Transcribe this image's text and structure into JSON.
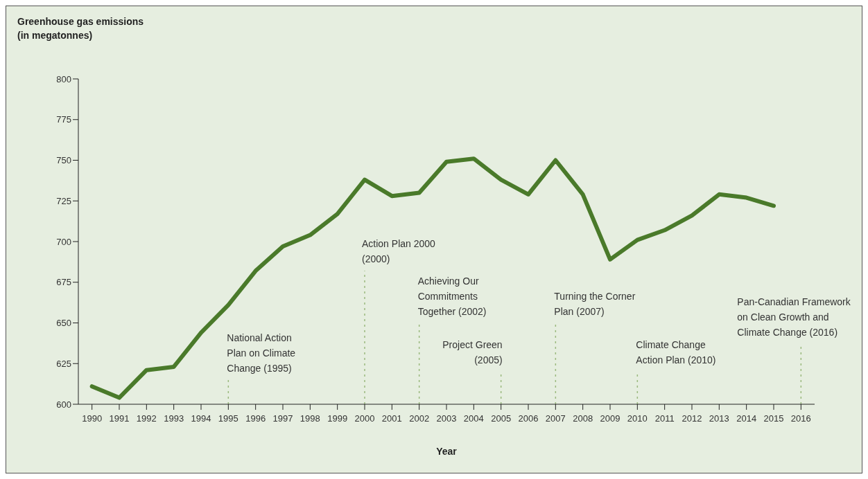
{
  "chart_data": {
    "type": "line",
    "ylabel": "Greenhouse gas emissions\n(in megatonnes)",
    "xlabel": "Year",
    "x": [
      1990,
      1991,
      1992,
      1993,
      1994,
      1995,
      1996,
      1997,
      1998,
      1999,
      2000,
      2001,
      2002,
      2003,
      2004,
      2005,
      2006,
      2007,
      2008,
      2009,
      2010,
      2011,
      2012,
      2013,
      2014,
      2015
    ],
    "series": [
      {
        "color": "#4a7a2a",
        "values": [
          611,
          604,
          621,
          623,
          644,
          661,
          682,
          697,
          704,
          717,
          738,
          728,
          730,
          749,
          751,
          738,
          729,
          750,
          729,
          689,
          701,
          707,
          716,
          729,
          727,
          722
        ]
      }
    ],
    "xlim": [
      1989.5,
      2016.5
    ],
    "xticks": [
      1990,
      1991,
      1992,
      1993,
      1994,
      1995,
      1996,
      1997,
      1998,
      1999,
      2000,
      2001,
      2002,
      2003,
      2004,
      2005,
      2006,
      2007,
      2008,
      2009,
      2010,
      2011,
      2012,
      2013,
      2014,
      2015,
      2016
    ],
    "ylim": [
      600,
      800
    ],
    "yticks": [
      600,
      625,
      650,
      675,
      700,
      725,
      750,
      775,
      800
    ],
    "ref_lines": [
      {
        "axis": "x",
        "value": 1995,
        "label": "National Action\nPlan on Climate\nChange (1995)",
        "color": "#9bb97e",
        "line_style": "dashed"
      },
      {
        "axis": "x",
        "value": 2000,
        "label": "Action Plan 2000\n(2000)",
        "color": "#9bb97e",
        "line_style": "dashed"
      },
      {
        "axis": "x",
        "value": 2002,
        "label": "Achieving Our\nCommitments\nTogether (2002)",
        "color": "#9bb97e",
        "line_style": "dashed"
      },
      {
        "axis": "x",
        "value": 2005,
        "label": "Project Green\n(2005)",
        "color": "#9bb97e",
        "line_style": "dashed"
      },
      {
        "axis": "x",
        "value": 2007,
        "label": "Turning the Corner\nPlan (2007)",
        "color": "#9bb97e",
        "line_style": "dashed"
      },
      {
        "axis": "x",
        "value": 2010,
        "label": "Climate Change\nAction Plan (2010)",
        "color": "#9bb97e",
        "line_style": "dashed"
      },
      {
        "axis": "x",
        "value": 2016,
        "label": "Pan-Canadian Framework\non Clean Growth and\nClimate Change (2016)",
        "color": "#9bb97e",
        "line_style": "dashed"
      }
    ]
  }
}
